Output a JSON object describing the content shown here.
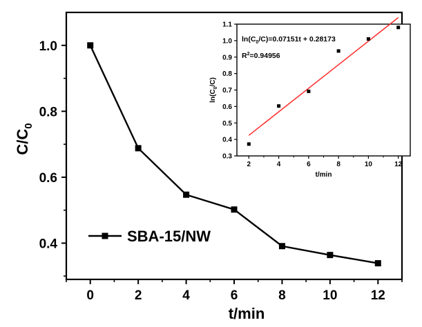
{
  "chart_data": [
    {
      "type": "line",
      "xlabel": "t/min",
      "ylabel": {
        "base": "C/C",
        "sub": "0"
      },
      "xlim": [
        -1,
        13
      ],
      "ylim": [
        0.29,
        1.1
      ],
      "x_ticks": [
        0,
        2,
        4,
        6,
        8,
        10,
        12
      ],
      "y_ticks": [
        0.4,
        0.6,
        0.8,
        1.0
      ],
      "x_tick_labels": [
        "0",
        "2",
        "4",
        "6",
        "8",
        "10",
        "12"
      ],
      "y_tick_labels": [
        "0.4",
        "0.6",
        "0.8",
        "1.0"
      ],
      "legend_position": "lower-left",
      "series": [
        {
          "name": "SBA-15/NW",
          "marker": "square",
          "color": "#000000",
          "x": [
            0,
            2,
            4,
            6,
            8,
            10,
            12
          ],
          "values": [
            1.0,
            0.688,
            0.547,
            0.502,
            0.391,
            0.364,
            0.339
          ]
        }
      ]
    },
    {
      "type": "scatter",
      "xlabel": "t/min",
      "ylabel": {
        "base": "ln(C",
        "sub": "0",
        "tail": "/C)"
      },
      "xlim": [
        1.2,
        12.8
      ],
      "ylim": [
        0.3,
        1.1
      ],
      "x_ticks": [
        2,
        4,
        6,
        8,
        10,
        12
      ],
      "y_ticks": [
        0.3,
        0.4,
        0.5,
        0.6,
        0.7,
        0.8,
        0.9,
        1.0,
        1.1
      ],
      "x_tick_labels": [
        "2",
        "4",
        "6",
        "8",
        "10",
        "12"
      ],
      "y_tick_labels": [
        "0.3",
        "0.4",
        "0.5",
        "0.6",
        "0.7",
        "0.8",
        "0.9",
        "1.0",
        "1.1"
      ],
      "series": [
        {
          "marker": "square",
          "color": "#000000",
          "x": [
            2,
            4,
            6,
            8,
            10,
            12
          ],
          "values": [
            0.372,
            0.603,
            0.692,
            0.937,
            1.01,
            1.08
          ]
        }
      ],
      "fit_line": {
        "color": "#ff2a2a",
        "slope": 0.07151,
        "intercept": 0.28173,
        "x_range": [
          2,
          12
        ]
      },
      "annotations": {
        "equation": {
          "a": "ln(C",
          "sub": "0",
          "b": "/C)=0.07151t + 0.28173"
        },
        "r2": {
          "a": "R",
          "sup": "2",
          "b": "=0.94956"
        }
      }
    }
  ]
}
